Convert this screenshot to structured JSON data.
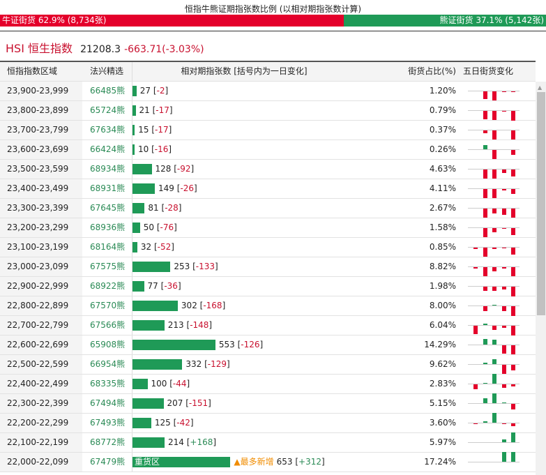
{
  "title": "恒指牛熊证期指张数比例 (以相对期指张数计算)",
  "ratio": {
    "bull_label": "牛证街货 62.9% (8,734张)",
    "bear_label": "熊证街货 37.1% (5,142张)",
    "bull_pct": 62.9,
    "bear_pct": 37.1
  },
  "index": {
    "name": "HSI 恒生指数",
    "value": "21208.3",
    "change": "-663.71(-3.03%)"
  },
  "headers": [
    "恒指指数区域",
    "法兴精选",
    "相对期指张数 [括号内为一日变化]",
    "街货占比(%)",
    "五日街货变化"
  ],
  "colors": {
    "bull": "#e4002b",
    "bear": "#1f9a57",
    "hot": "#f08c00"
  },
  "rows": [
    {
      "range": "23,900-23,999",
      "code": "66485熊",
      "count": 27,
      "chg": "-2",
      "pct": "1.20%",
      "five": [
        0,
        -11,
        -13,
        -1,
        -1
      ]
    },
    {
      "range": "23,800-23,899",
      "code": "65724熊",
      "count": 21,
      "chg": "-17",
      "pct": "0.79%",
      "five": [
        0,
        -12,
        -13,
        -1,
        -14
      ]
    },
    {
      "range": "23,700-23,799",
      "code": "67634熊",
      "count": 15,
      "chg": "-17",
      "pct": "0.37%",
      "five": [
        0,
        -4,
        -13,
        0,
        -13
      ]
    },
    {
      "range": "23,600-23,699",
      "code": "66424熊",
      "count": 10,
      "chg": "-16",
      "pct": "0.26%",
      "five": [
        0,
        6,
        -13,
        0,
        -7
      ]
    },
    {
      "range": "23,500-23,599",
      "code": "68934熊",
      "count": 128,
      "chg": "-92",
      "pct": "4.63%",
      "five": [
        0,
        -13,
        -13,
        -5,
        -10
      ]
    },
    {
      "range": "23,400-23,499",
      "code": "68931熊",
      "count": 149,
      "chg": "-26",
      "pct": "4.11%",
      "five": [
        0,
        -13,
        -13,
        -2,
        -7
      ]
    },
    {
      "range": "23,300-23,399",
      "code": "67645熊",
      "count": 81,
      "chg": "-28",
      "pct": "2.67%",
      "five": [
        0,
        -13,
        -7,
        -9,
        -13
      ]
    },
    {
      "range": "23,200-23,299",
      "code": "68936熊",
      "count": 50,
      "chg": "-76",
      "pct": "1.58%",
      "five": [
        0,
        -13,
        -6,
        -1,
        -10
      ]
    },
    {
      "range": "23,100-23,199",
      "code": "68164熊",
      "count": 32,
      "chg": "-52",
      "pct": "0.85%",
      "five": [
        -2,
        -13,
        -2,
        -1,
        -10
      ]
    },
    {
      "range": "23,000-23,099",
      "code": "67575熊",
      "count": 253,
      "chg": "-133",
      "pct": "8.82%",
      "five": [
        -2,
        -13,
        -6,
        -2,
        -13
      ]
    },
    {
      "range": "22,900-22,999",
      "code": "68922熊",
      "count": 77,
      "chg": "-36",
      "pct": "1.98%",
      "five": [
        0,
        -6,
        -6,
        -4,
        -14
      ]
    },
    {
      "range": "22,800-22,899",
      "code": "67570熊",
      "count": 302,
      "chg": "-168",
      "pct": "8.00%",
      "five": [
        0,
        -7,
        1,
        -7,
        -14
      ]
    },
    {
      "range": "22,700-22,799",
      "code": "67566熊",
      "count": 213,
      "chg": "-148",
      "pct": "6.04%",
      "five": [
        -12,
        2,
        -6,
        -3,
        -14
      ]
    },
    {
      "range": "22,600-22,699",
      "code": "65908熊",
      "count": 553,
      "chg": "-126",
      "pct": "14.29%",
      "five": [
        0,
        8,
        7,
        -12,
        -13
      ]
    },
    {
      "range": "22,500-22,599",
      "code": "66954熊",
      "count": 332,
      "chg": "-129",
      "pct": "9.62%",
      "five": [
        0,
        2,
        7,
        -13,
        -8
      ]
    },
    {
      "range": "22,400-22,499",
      "code": "68335熊",
      "count": 100,
      "chg": "-44",
      "pct": "2.83%",
      "five": [
        -7,
        1,
        14,
        -5,
        -3
      ]
    },
    {
      "range": "22,300-22,399",
      "code": "67494熊",
      "count": 207,
      "chg": "-151",
      "pct": "5.15%",
      "five": [
        0,
        7,
        14,
        1,
        -8
      ]
    },
    {
      "range": "22,200-22,299",
      "code": "67493熊",
      "count": 125,
      "chg": "-42",
      "pct": "3.60%",
      "five": [
        -1,
        2,
        14,
        -1,
        -4
      ]
    },
    {
      "range": "22,100-22,199",
      "code": "68772熊",
      "count": 214,
      "chg": "+168",
      "pct": "5.97%",
      "five": [
        0,
        0,
        0,
        4,
        14
      ]
    },
    {
      "range": "22,000-22,099",
      "code": "67479熊",
      "count": 653,
      "chg": "+312",
      "pct": "17.24%",
      "five": [
        0,
        0,
        0,
        14,
        14
      ],
      "bar_label": "重货区",
      "hot_label": "▲最多新增"
    }
  ]
}
